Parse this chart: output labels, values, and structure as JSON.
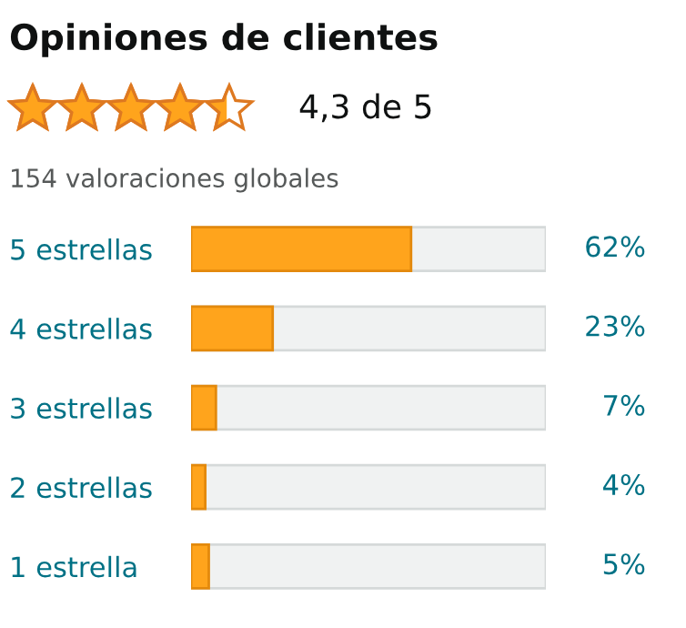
{
  "chart_data": {
    "type": "bar",
    "orientation": "horizontal",
    "title": "Opiniones de clientes",
    "subtitle": "4,3 de 5",
    "annotations": [
      "154 valoraciones globales"
    ],
    "categories": [
      "5 estrellas",
      "4 estrellas",
      "3 estrellas",
      "2 estrellas",
      "1 estrella"
    ],
    "values": [
      62,
      23,
      7,
      4,
      5
    ],
    "value_labels": [
      "62%",
      "23%",
      "7%",
      "4%",
      "5%"
    ],
    "color": "#ffa41c",
    "xlim": [
      0,
      100
    ],
    "tick_labels": "y",
    "grid": false,
    "legend": false
  }
}
